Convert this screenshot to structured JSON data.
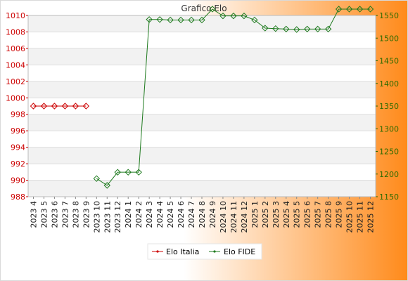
{
  "chart_data": {
    "type": "line",
    "title": "Grafico Elo",
    "categories": [
      "2023 4",
      "2023 5",
      "2023 6",
      "2023 7",
      "2023 8",
      "2023 9",
      "2023 10",
      "2023 11",
      "2023 12",
      "2024 1",
      "2024 2",
      "2024 3",
      "2024 4",
      "2024 5",
      "2024 6",
      "2024 7",
      "2024 8",
      "2024 9",
      "2024 10",
      "2024 11",
      "2024 12",
      "2025 1",
      "2025 2",
      "2025 3",
      "2025 4",
      "2025 5",
      "2025 6",
      "2025 7",
      "2025 8",
      "2025 9",
      "2025 10",
      "2025 11",
      "2025 12"
    ],
    "y_left": {
      "min": 988,
      "max": 1010,
      "ticks": [
        988,
        990,
        992,
        994,
        996,
        998,
        1000,
        1002,
        1004,
        1006,
        1008,
        1010
      ]
    },
    "y_right": {
      "min": 1150,
      "max": 1550,
      "ticks": [
        1150,
        1200,
        1250,
        1300,
        1350,
        1400,
        1450,
        1500,
        1550
      ]
    },
    "grid": true,
    "legend_position": "bottom-center",
    "series": [
      {
        "name": "Elo Italia",
        "axis": "left",
        "color": "#cc0000",
        "values": [
          999,
          999,
          999,
          999,
          999,
          999,
          null,
          null,
          null,
          null,
          null,
          null,
          null,
          null,
          null,
          null,
          null,
          null,
          null,
          null,
          null,
          null,
          null,
          null,
          null,
          null,
          null,
          null,
          null,
          null,
          null,
          null,
          null
        ]
      },
      {
        "name": "Elo FIDE",
        "axis": "right",
        "color": "#1e7a1e",
        "values": [
          null,
          null,
          null,
          null,
          null,
          null,
          1190,
          1175,
          1204,
          1204,
          1204,
          1541,
          1541,
          1540,
          1540,
          1540,
          1540,
          1564,
          1549,
          1549,
          1549,
          1540,
          1522,
          1521,
          1520,
          1519,
          1520,
          1520,
          1520,
          1564,
          1564,
          1564,
          1564
        ]
      }
    ]
  }
}
